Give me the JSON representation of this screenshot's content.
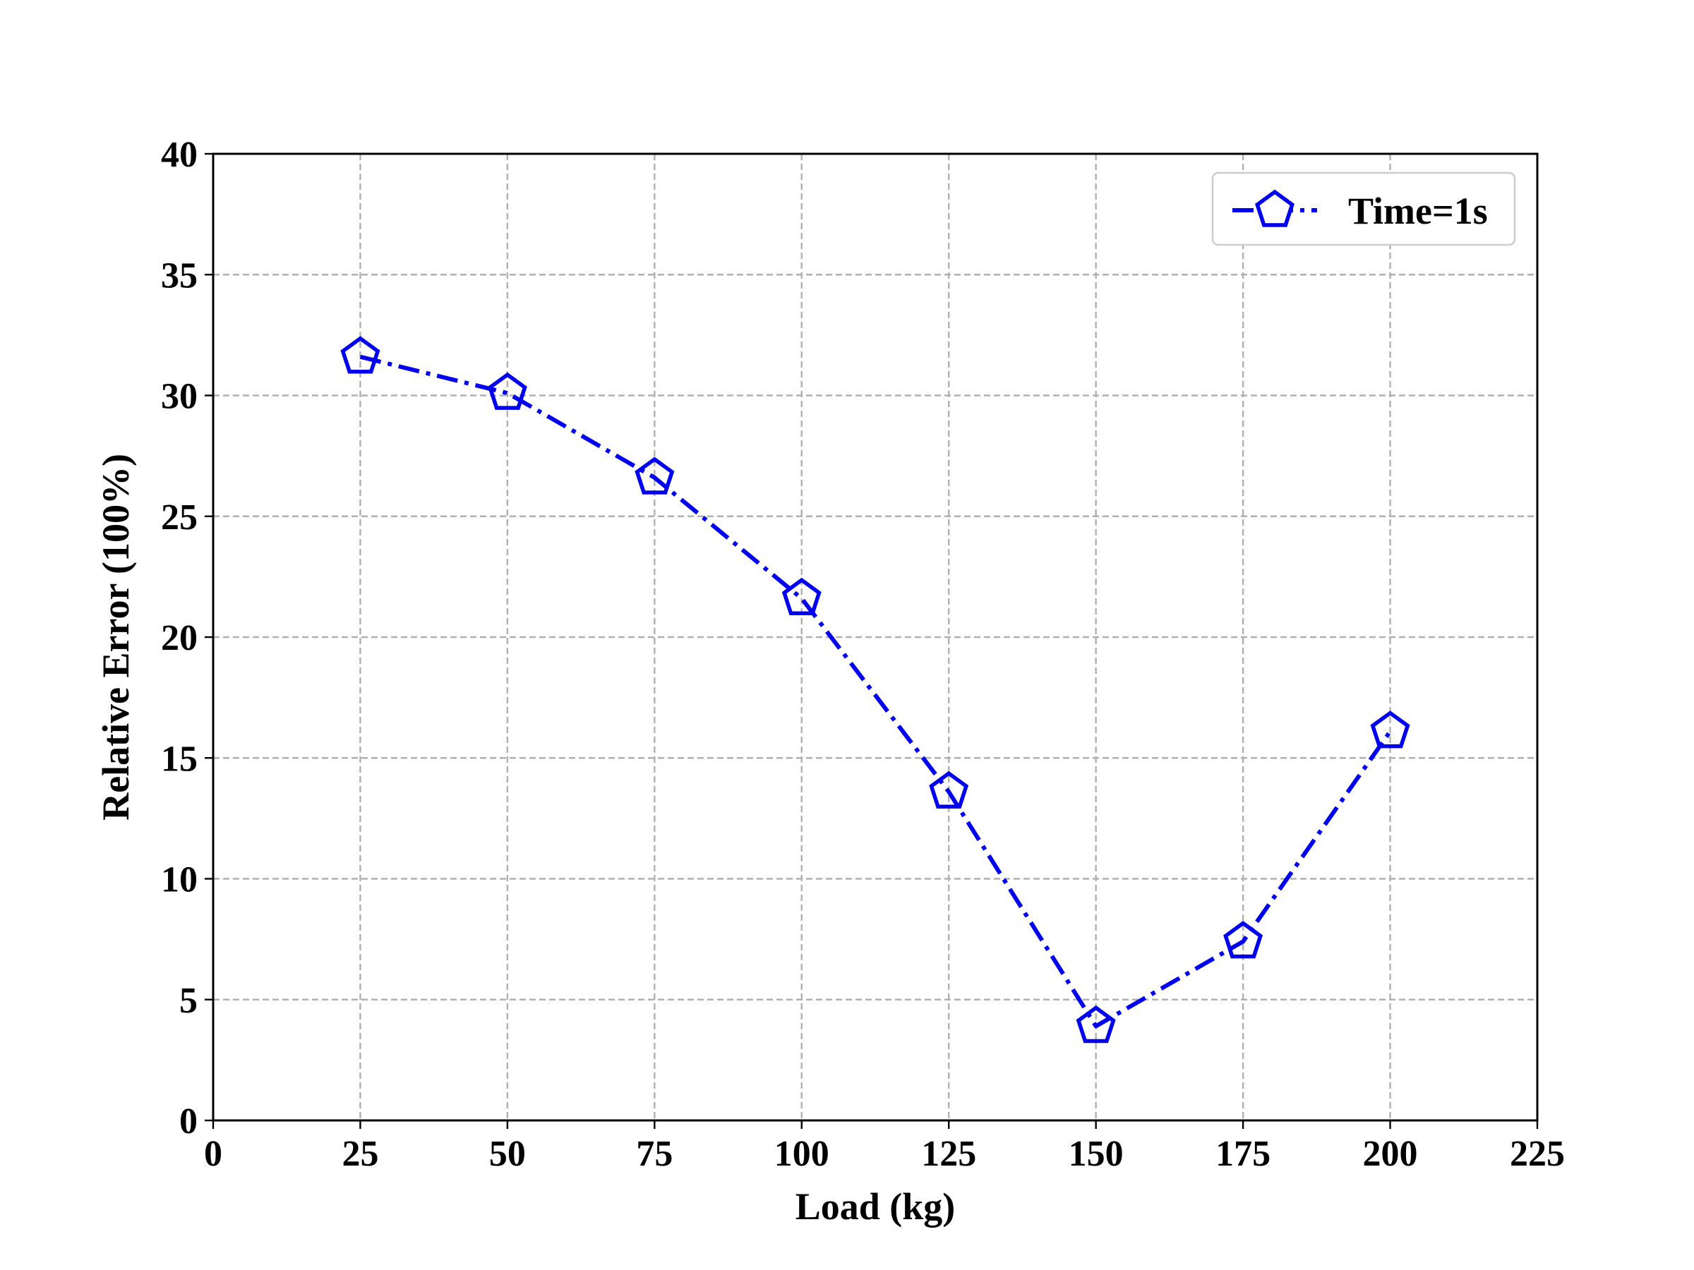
{
  "chart_data": {
    "type": "line",
    "xlabel": "Load (kg)",
    "ylabel": "Relative Error (100%)",
    "xlim": [
      0,
      225
    ],
    "ylim": [
      0,
      40
    ],
    "xticks": [
      0,
      25,
      50,
      75,
      100,
      125,
      150,
      175,
      200,
      225
    ],
    "yticks": [
      0,
      5,
      10,
      15,
      20,
      25,
      30,
      35,
      40
    ],
    "grid": true,
    "legend_position": "top-right",
    "series": [
      {
        "name": "Time=1s",
        "color": "#0000ee",
        "marker": "pentagon",
        "line_style": "dash-dot",
        "x": [
          25,
          50,
          75,
          100,
          125,
          150,
          175,
          200
        ],
        "y": [
          31.6,
          30.1,
          26.6,
          21.6,
          13.6,
          3.9,
          7.4,
          16.1
        ]
      }
    ]
  }
}
